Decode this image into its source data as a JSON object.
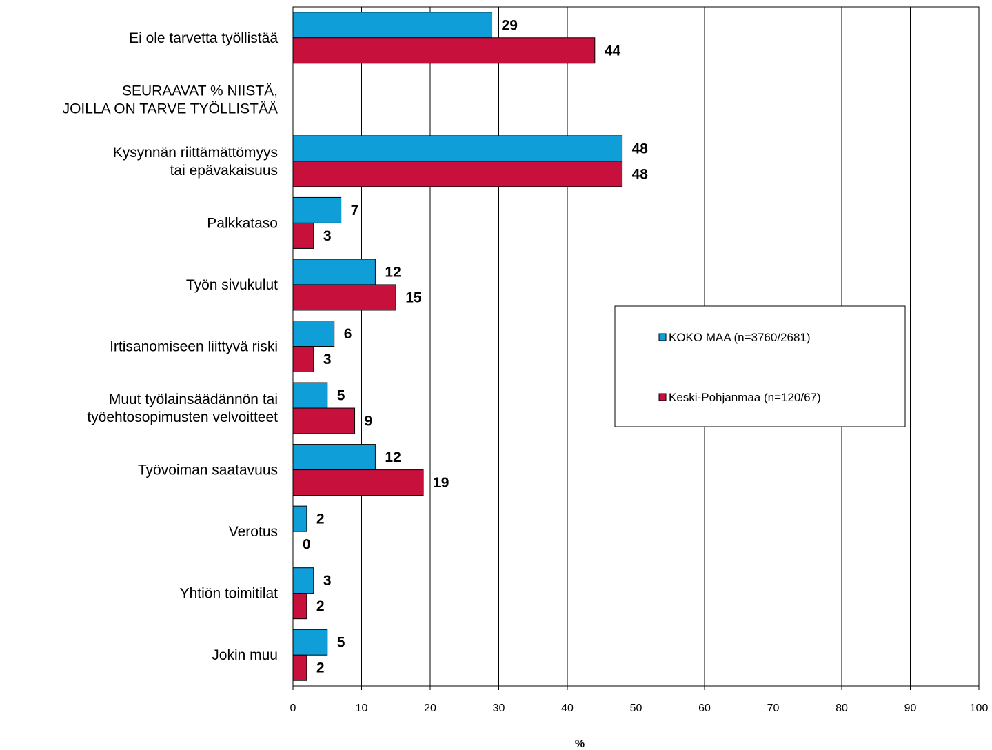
{
  "chart_data": {
    "type": "bar",
    "orientation": "horizontal",
    "categories": [
      [
        "Ei ole tarvetta työllistää"
      ],
      [
        "SEURAAVAT % NIISTÄ,",
        "JOILLA ON TARVE TYÖLLISTÄÄ"
      ],
      [
        "Kysynnän riittämättömyys",
        "tai epävakaisuus"
      ],
      [
        "Palkkataso"
      ],
      [
        "Työn sivukulut"
      ],
      [
        "Irtisanomiseen liittyvä riski"
      ],
      [
        "Muut työlainsäädännön tai",
        "työehtosopimusten velvoitteet"
      ],
      [
        "Työvoiman saatavuus"
      ],
      [
        "Verotus"
      ],
      [
        "Yhtiön toimitilat"
      ],
      [
        "Jokin muu"
      ]
    ],
    "series": [
      {
        "name": "KOKO MAA (n=3760/2681)",
        "color": "#0f9ed8",
        "values": [
          29,
          null,
          48,
          7,
          12,
          6,
          5,
          12,
          2,
          3,
          5
        ]
      },
      {
        "name": "Keski-Pohjanmaa (n=120/67)",
        "color": "#c8103c",
        "values": [
          44,
          null,
          48,
          3,
          15,
          3,
          9,
          19,
          0,
          2,
          2
        ]
      }
    ],
    "xlim": [
      0,
      100
    ],
    "x_ticks": [
      0,
      10,
      20,
      30,
      40,
      50,
      60,
      70,
      80,
      90,
      100
    ],
    "xlabel": "%",
    "grid": "vertical",
    "legend_position": "right-middle"
  }
}
